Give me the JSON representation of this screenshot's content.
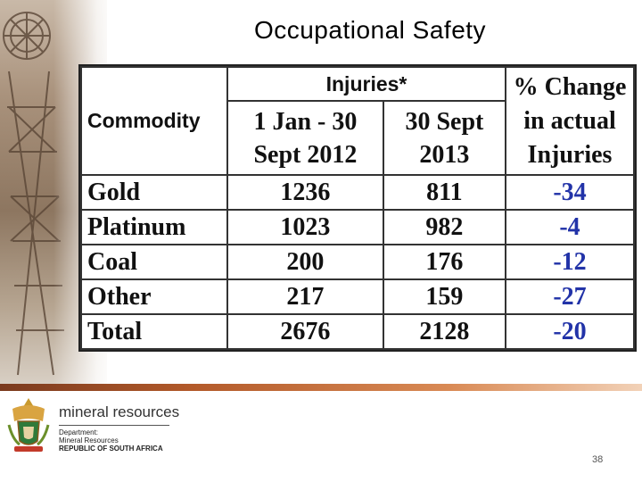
{
  "slide": {
    "title": "Occupational Safety",
    "page_number": "38"
  },
  "table": {
    "header": {
      "commodity": "Commodity",
      "injuries_group": "Injuries*",
      "col_2012_line1": "1 Jan - 30",
      "col_2012_line2": "Sept 2012",
      "col_2013_line1": "30 Sept",
      "col_2013_line2": "2013",
      "pct_line1": "% Change",
      "pct_line2": "in actual",
      "pct_line3": "Injuries"
    },
    "rows": [
      {
        "commodity": "Gold",
        "y2012": "1236",
        "y2013": "811",
        "pct": "-34"
      },
      {
        "commodity": "Platinum",
        "y2012": "1023",
        "y2013": "982",
        "pct": "-4"
      },
      {
        "commodity": "Coal",
        "y2012": "200",
        "y2013": "176",
        "pct": "-12"
      },
      {
        "commodity": "Other",
        "y2012": "217",
        "y2013": "159",
        "pct": "-27"
      },
      {
        "commodity": "Total",
        "y2012": "2676",
        "y2013": "2128",
        "pct": "-20"
      }
    ],
    "pct_color": "#2233a8"
  },
  "footer": {
    "brand": "mineral resources",
    "dept_line1": "Department:",
    "dept_line2": "Mineral Resources",
    "dept_line3": "REPUBLIC OF SOUTH AFRICA",
    "logo_icon": "coat-of-arms-icon"
  }
}
